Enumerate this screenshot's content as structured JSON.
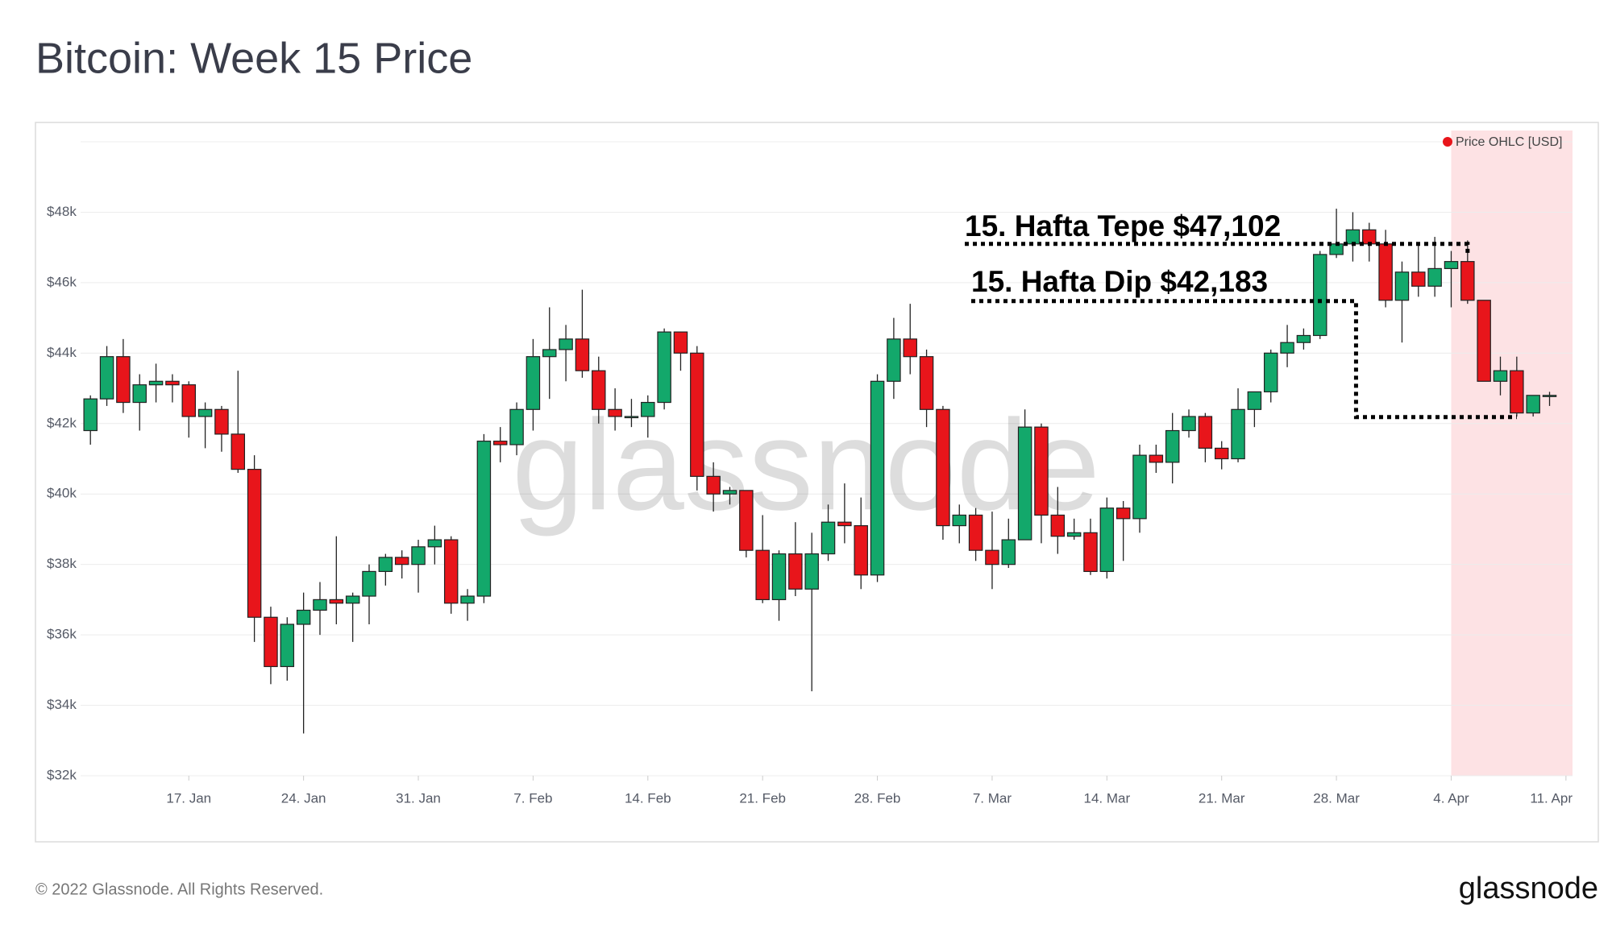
{
  "chart_data": {
    "type": "candlestick",
    "title": "Bitcoin: Week 15 Price",
    "footer": "© 2022 Glassnode. All Rights Reserved.",
    "brand": "glassnode",
    "watermark": "glassnode",
    "categories": [
      "11. Jan",
      "12. Jan",
      "13. Jan",
      "14. Jan",
      "15. Jan",
      "16. Jan",
      "17. Jan",
      "18. Jan",
      "19. Jan",
      "20. Jan",
      "21. Jan",
      "22. Jan",
      "23. Jan",
      "24. Jan",
      "25. Jan",
      "26. Jan",
      "27. Jan",
      "28. Jan",
      "29. Jan",
      "30. Jan",
      "31. Jan",
      "1. Feb",
      "2. Feb",
      "3. Feb",
      "4. Feb",
      "5. Feb",
      "6. Feb",
      "7. Feb",
      "8. Feb",
      "9. Feb",
      "10. Feb",
      "11. Feb",
      "12. Feb",
      "13. Feb",
      "14. Feb",
      "15. Feb",
      "16. Feb",
      "17. Feb",
      "18. Feb",
      "19. Feb",
      "20. Feb",
      "21. Feb",
      "22. Feb",
      "23. Feb",
      "24. Feb",
      "25. Feb",
      "26. Feb",
      "27. Feb",
      "28. Feb",
      "1. Mar",
      "2. Mar",
      "3. Mar",
      "4. Mar",
      "5. Mar",
      "6. Mar",
      "7. Mar",
      "8. Mar",
      "9. Mar",
      "10. Mar",
      "11. Mar",
      "12. Mar",
      "13. Mar",
      "14. Mar",
      "15. Mar",
      "16. Mar",
      "17. Mar",
      "18. Mar",
      "19. Mar",
      "20. Mar",
      "21. Mar",
      "22. Mar",
      "23. Mar",
      "24. Mar",
      "25. Mar",
      "26. Mar",
      "27. Mar",
      "28. Mar",
      "29. Mar",
      "30. Mar",
      "31. Mar",
      "1. Apr",
      "2. Apr",
      "3. Apr",
      "4. Apr",
      "5. Apr",
      "6. Apr",
      "7. Apr",
      "8. Apr",
      "9. Apr",
      "10. Apr",
      "11. Apr"
    ],
    "series": [
      {
        "name": "Price OHLC [USD]",
        "color": "#e8151b",
        "color_up": "#13a86b",
        "color_down": "#e8151b",
        "open": [
          41800,
          42700,
          43900,
          42600,
          43100,
          43200,
          43100,
          42200,
          42400,
          41700,
          40700,
          36500,
          35100,
          36300,
          36700,
          37000,
          36900,
          37100,
          37800,
          38200,
          38000,
          38500,
          38700,
          36900,
          37100,
          41500,
          41400,
          42400,
          43900,
          44100,
          44400,
          43500,
          42400,
          42200,
          42200,
          42600,
          44600,
          44000,
          40500,
          40000,
          40100,
          38400,
          37000,
          38300,
          37300,
          38300,
          39200,
          39100,
          37700,
          43200,
          44400,
          43900,
          42400,
          39100,
          39400,
          38400,
          38000,
          38700,
          41900,
          39400,
          38800,
          38900,
          37800,
          39600,
          39300,
          41100,
          40900,
          41800,
          42200,
          41300,
          41000,
          42400,
          42900,
          44000,
          44300,
          44500,
          46800,
          47100,
          47500,
          47100,
          45500,
          46300,
          45900,
          46400,
          46600,
          45500,
          43200,
          43500,
          42300,
          42800,
          null
        ],
        "high": [
          42800,
          44200,
          44400,
          43400,
          43700,
          43400,
          43200,
          42600,
          42500,
          43500,
          41100,
          36800,
          36500,
          37200,
          37500,
          38800,
          37200,
          38000,
          38300,
          38400,
          38700,
          39100,
          38800,
          37300,
          41700,
          41900,
          42600,
          44400,
          45300,
          44800,
          45800,
          43900,
          43000,
          42700,
          42800,
          44700,
          44600,
          44200,
          40900,
          40200,
          40100,
          39400,
          38400,
          39200,
          38900,
          39700,
          40300,
          39900,
          43400,
          45000,
          45400,
          44100,
          42500,
          39700,
          39600,
          39500,
          39300,
          42400,
          42000,
          40200,
          39300,
          39300,
          39900,
          39800,
          41400,
          41400,
          42300,
          42400,
          42300,
          41500,
          43000,
          42900,
          44100,
          44800,
          44700,
          46900,
          48100,
          48000,
          47700,
          47500,
          46600,
          47100,
          47300,
          46900,
          47200,
          45500,
          43900,
          43900,
          42800,
          42900,
          null
        ],
        "low": [
          41400,
          42500,
          42300,
          41800,
          42600,
          42600,
          41600,
          41300,
          41200,
          40600,
          35800,
          34600,
          34700,
          33200,
          36000,
          36300,
          35800,
          36300,
          37400,
          37600,
          37200,
          38000,
          36600,
          36400,
          36900,
          40900,
          41100,
          41800,
          42700,
          43200,
          43300,
          42000,
          41800,
          41900,
          41600,
          42400,
          43500,
          40100,
          39500,
          39700,
          38200,
          36900,
          36400,
          37100,
          34400,
          38100,
          38600,
          37300,
          37500,
          42700,
          43400,
          41900,
          38700,
          38600,
          38100,
          37300,
          37900,
          38700,
          38600,
          38300,
          38700,
          37700,
          37600,
          38100,
          38900,
          40600,
          40300,
          41600,
          40900,
          40700,
          40900,
          41900,
          42600,
          43600,
          44100,
          44400,
          46700,
          46600,
          46600,
          45300,
          44300,
          45600,
          45600,
          45300,
          45400,
          43200,
          42800,
          42200,
          42200,
          42500,
          null
        ],
        "close": [
          42700,
          43900,
          42600,
          43100,
          43200,
          43100,
          42200,
          42400,
          41700,
          40700,
          36500,
          35100,
          36300,
          36700,
          37000,
          36900,
          37100,
          37800,
          38200,
          38000,
          38500,
          38700,
          36900,
          37100,
          41500,
          41400,
          42400,
          43900,
          44100,
          44400,
          43500,
          42400,
          42200,
          42200,
          42600,
          44600,
          44000,
          40500,
          40000,
          40100,
          38400,
          37000,
          38300,
          37300,
          38300,
          39200,
          39100,
          37700,
          43200,
          44400,
          43900,
          42400,
          39100,
          39400,
          38400,
          38000,
          38700,
          41900,
          39400,
          38800,
          38900,
          37800,
          39600,
          39300,
          41100,
          40900,
          41800,
          42200,
          41300,
          41000,
          42400,
          42900,
          44000,
          44300,
          44500,
          46800,
          47100,
          47500,
          47100,
          45500,
          46300,
          45900,
          46400,
          46600,
          45500,
          43200,
          43500,
          42300,
          42800,
          42800,
          null
        ]
      }
    ],
    "ylim": [
      32000,
      50000
    ],
    "yticks": [
      {
        "value": 32000,
        "label": "$32k"
      },
      {
        "value": 34000,
        "label": "$34k"
      },
      {
        "value": 36000,
        "label": "$36k"
      },
      {
        "value": 38000,
        "label": "$38k"
      },
      {
        "value": 40000,
        "label": "$40k"
      },
      {
        "value": 42000,
        "label": "$42k"
      },
      {
        "value": 44000,
        "label": "$44k"
      },
      {
        "value": 46000,
        "label": "$46k"
      },
      {
        "value": 48000,
        "label": "$48k"
      }
    ],
    "xticks": [
      "17. Jan",
      "24. Jan",
      "31. Jan",
      "7. Feb",
      "14. Feb",
      "21. Feb",
      "28. Feb",
      "7. Mar",
      "14. Mar",
      "21. Mar",
      "28. Mar",
      "4. Apr",
      "11. Apr"
    ],
    "grid": true,
    "legend": "top-right",
    "highlight": {
      "from": "4. Apr",
      "to": "11. Apr",
      "color": "#fde2e4"
    },
    "annotations": [
      {
        "text": "15. Hafta Tepe $47,102",
        "value": 47102,
        "x_end": "5. Apr"
      },
      {
        "text": "15. Hafta Dip $42,183",
        "value": 42183,
        "x_end": "8. Apr"
      }
    ]
  }
}
